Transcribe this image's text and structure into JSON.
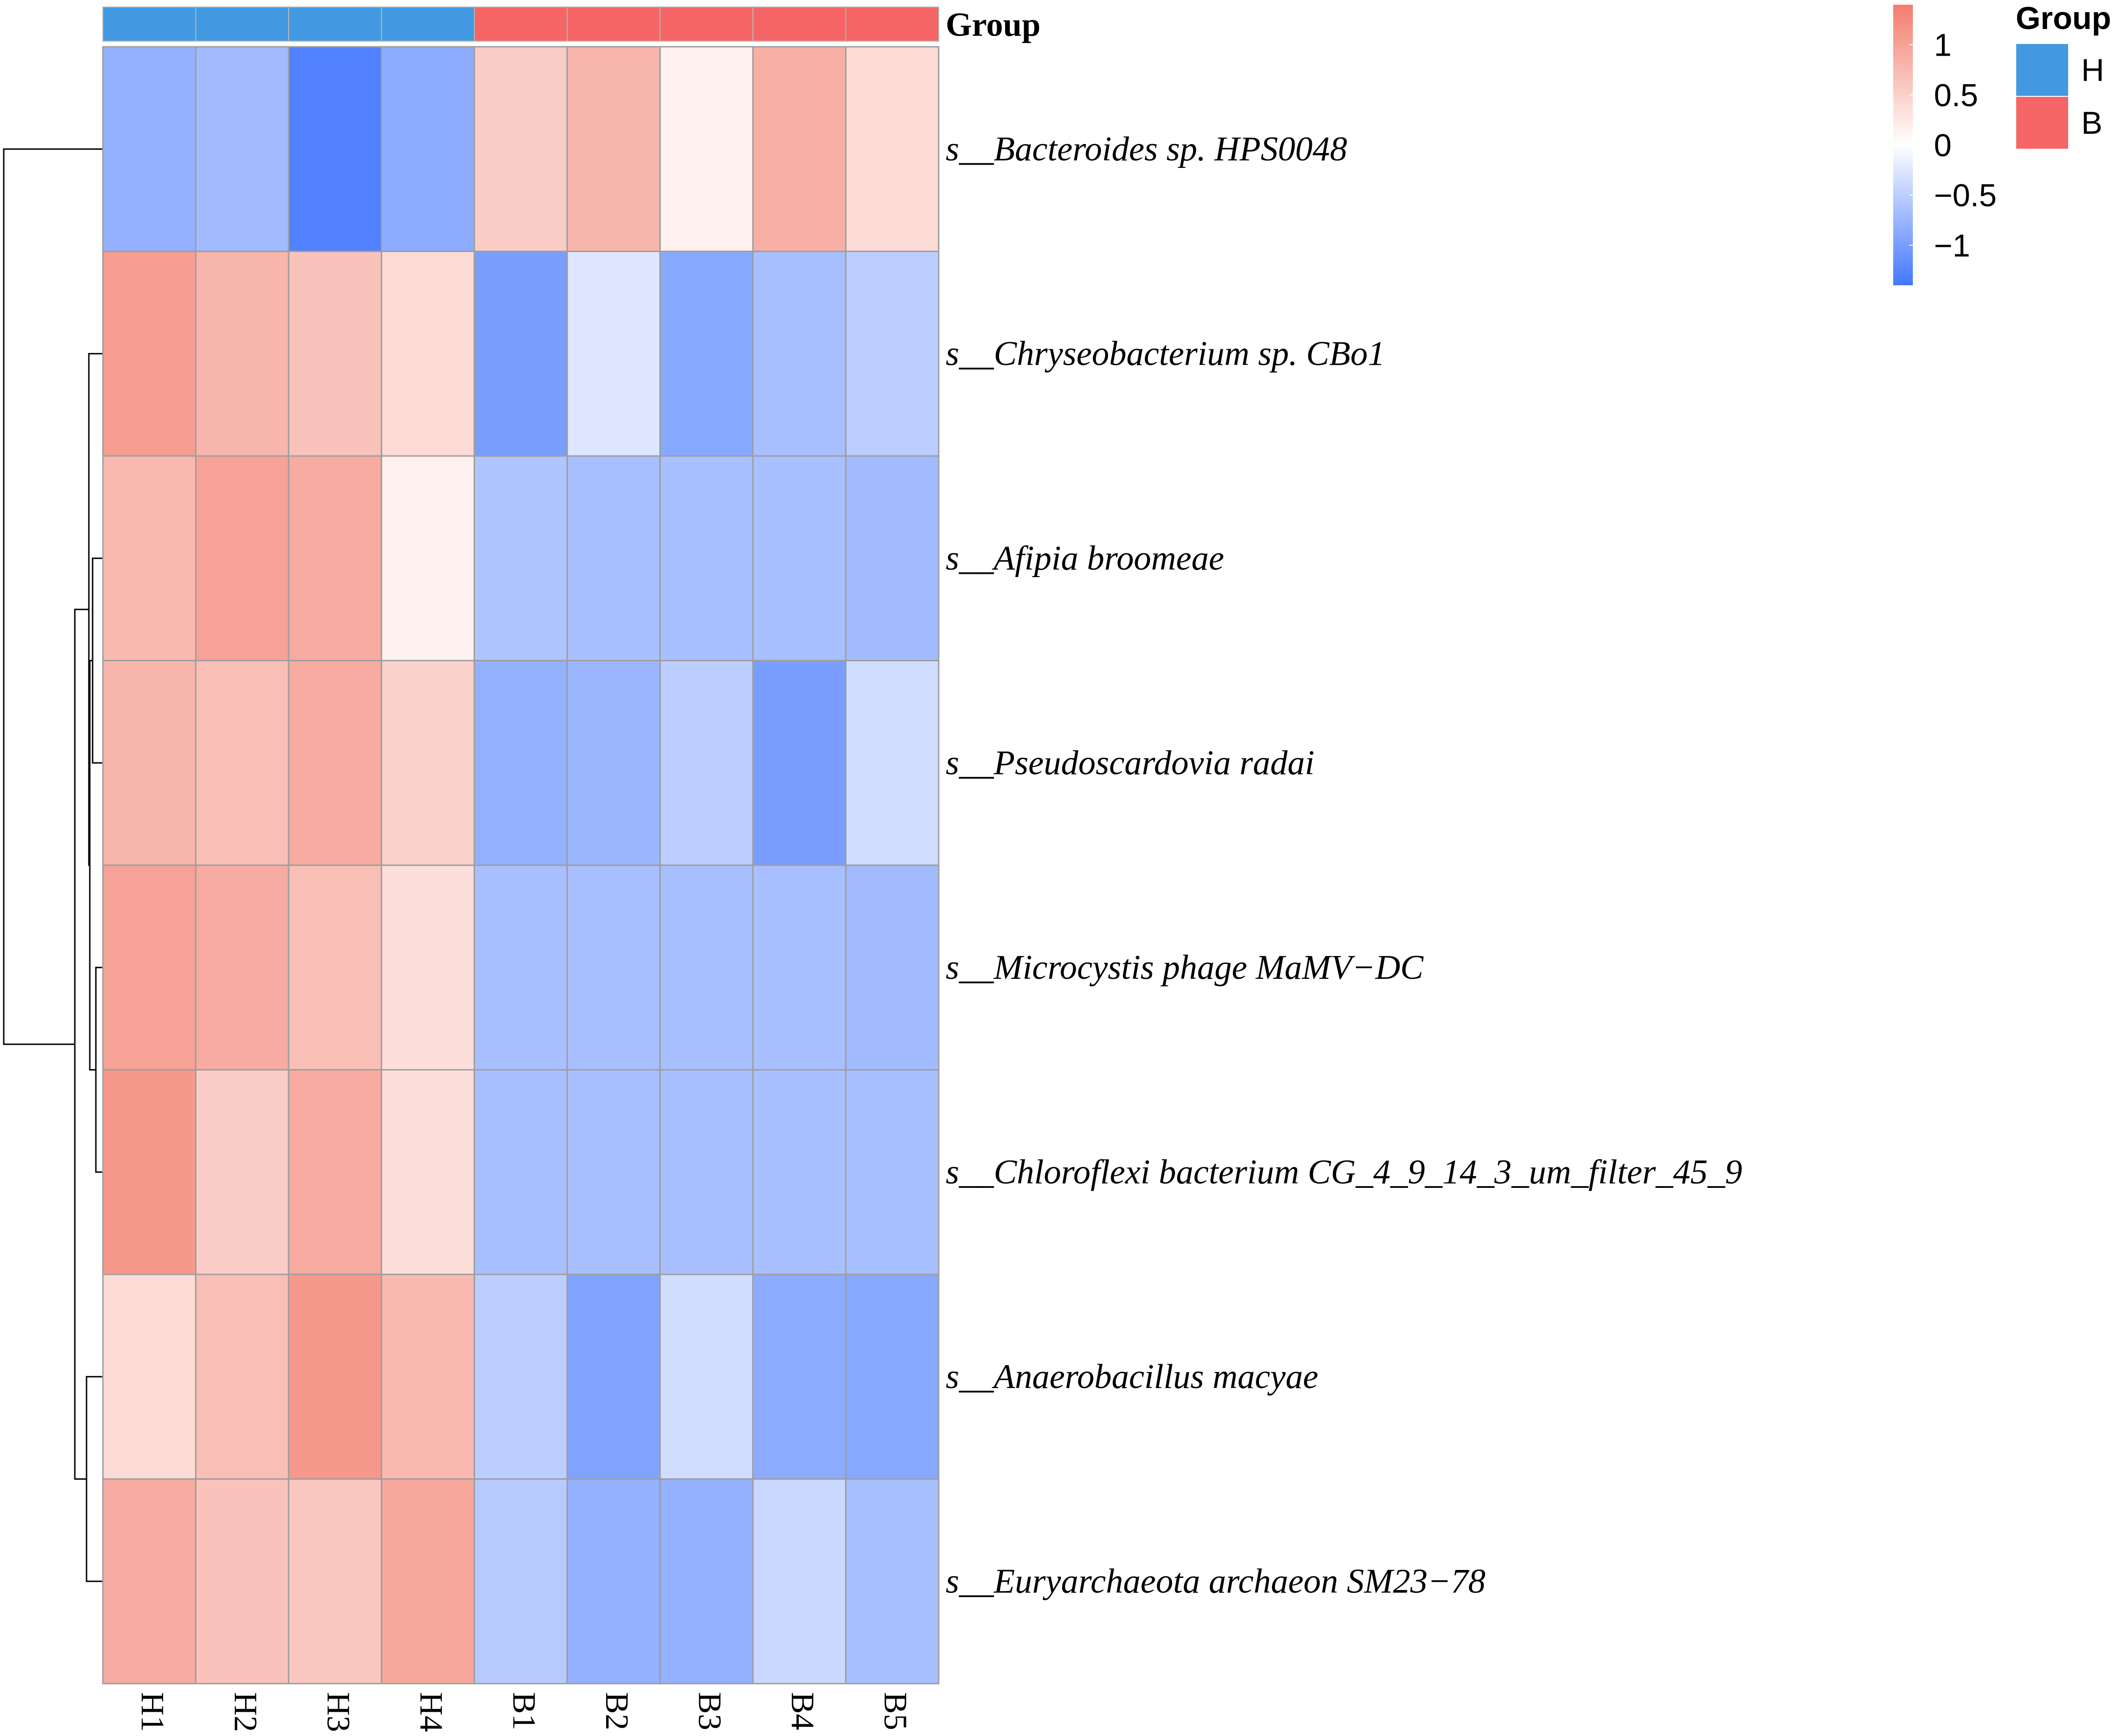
{
  "chart_data": {
    "type": "heatmap",
    "title": "",
    "columns": [
      "H1",
      "H2",
      "H3",
      "H4",
      "B1",
      "B2",
      "B3",
      "B4",
      "B5"
    ],
    "column_groups": [
      "H",
      "H",
      "H",
      "H",
      "B",
      "B",
      "B",
      "B",
      "B"
    ],
    "rows": [
      "s__Bacteroides sp. HPS0048",
      "s__Chryseobacterium sp. CBo1",
      "s__Afipia broomeae",
      "s__Pseudoscardovia radai",
      "s__Microcystis phage MaMV−DC",
      "s__Chloroflexi bacterium CG_4_9_14_3_um_filter_45_9",
      "s__Anaerobacillus macyae",
      "s__Euryarchaeota archaeon SM23−78"
    ],
    "values": [
      [
        -0.8,
        -0.7,
        -1.3,
        -0.85,
        0.55,
        0.8,
        0.15,
        0.85,
        0.4
      ],
      [
        1.05,
        0.8,
        0.65,
        0.4,
        -1.0,
        -0.25,
        -0.9,
        -0.65,
        -0.5
      ],
      [
        0.75,
        1.0,
        0.9,
        0.15,
        -0.6,
        -0.65,
        -0.65,
        -0.65,
        -0.7
      ],
      [
        0.8,
        0.7,
        0.9,
        0.5,
        -0.8,
        -0.75,
        -0.5,
        -1.0,
        -0.35
      ],
      [
        1.0,
        0.9,
        0.7,
        0.35,
        -0.65,
        -0.65,
        -0.65,
        -0.65,
        -0.7
      ],
      [
        1.1,
        0.55,
        0.9,
        0.35,
        -0.65,
        -0.65,
        -0.65,
        -0.65,
        -0.65
      ],
      [
        0.4,
        0.7,
        1.1,
        0.75,
        -0.5,
        -0.95,
        -0.35,
        -0.85,
        -0.9
      ],
      [
        0.9,
        0.65,
        0.6,
        0.95,
        -0.55,
        -0.8,
        -0.8,
        -0.4,
        -0.65
      ]
    ],
    "annotation": {
      "name": "Group",
      "levels": [
        "H",
        "B"
      ],
      "colors": {
        "H": "#4299e1",
        "B": "#f56565"
      }
    },
    "color_scale": {
      "min": -1.4,
      "max": 1.4,
      "low_color": "#4477ff",
      "mid_color": "#ffffff",
      "high_color": "#f37d6d",
      "ticks": [
        1,
        0.5,
        0,
        -0.5,
        -1
      ],
      "tick_labels": [
        "1",
        "0.5",
        "0",
        "−0.5",
        "−1"
      ]
    },
    "row_dendrogram": true,
    "legend_position": "top-right"
  }
}
